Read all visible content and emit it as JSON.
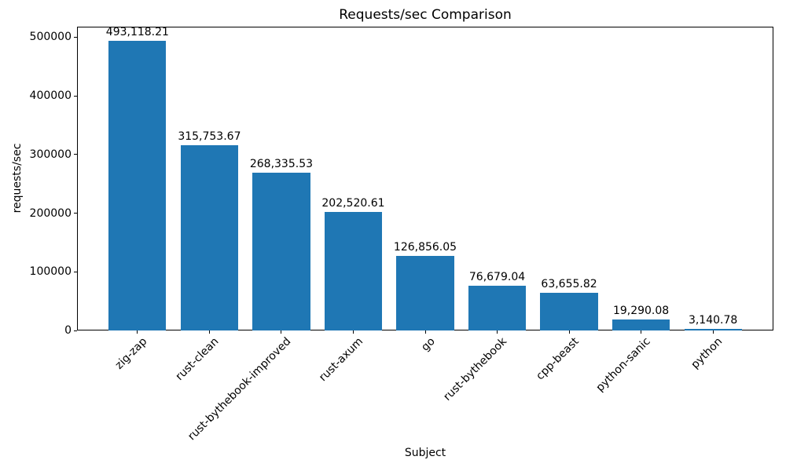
{
  "chart_data": {
    "type": "bar",
    "title": "Requests/sec Comparison",
    "xlabel": "Subject",
    "ylabel": "requests/sec",
    "categories": [
      "zig-zap",
      "rust-clean",
      "rust-bythebook-improved",
      "rust-axum",
      "go",
      "rust-bythebook",
      "cpp-beast",
      "python-sanic",
      "python"
    ],
    "values": [
      493118.21,
      315753.67,
      268335.53,
      202520.61,
      126856.05,
      76679.04,
      63655.82,
      19290.08,
      3140.78
    ],
    "value_labels": [
      "493,118.21",
      "315,753.67",
      "268,335.53",
      "202,520.61",
      "126,856.05",
      "76,679.04",
      "63,655.82",
      "19,290.08",
      "3,140.78"
    ],
    "yticks": [
      0,
      100000,
      200000,
      300000,
      400000,
      500000
    ],
    "ytick_labels": [
      "0",
      "100000",
      "200000",
      "300000",
      "400000",
      "500000"
    ],
    "ylim": [
      0,
      517774.12
    ],
    "bar_color": "#1f77b4",
    "axis_color": "#000000",
    "text_color": "#000000",
    "background_color": "#ffffff",
    "grid": false,
    "legend": null,
    "bar_width_fraction": 0.8,
    "x_tick_rotation_deg": 45
  }
}
